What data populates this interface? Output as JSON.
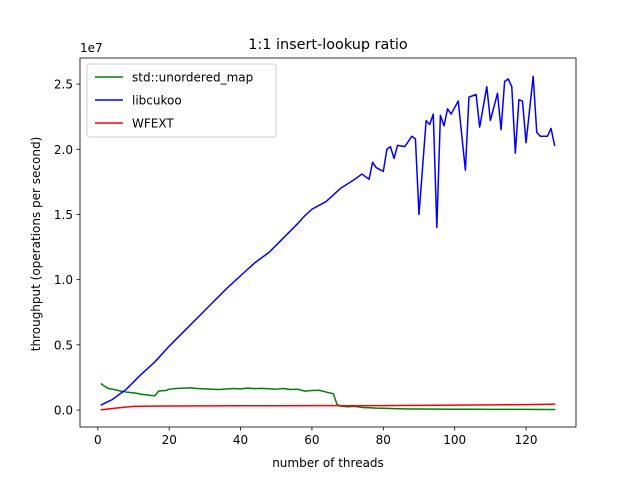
{
  "chart_data": {
    "type": "line",
    "title": "1:1 insert-lookup ratio",
    "xlabel": "number of threads",
    "ylabel": "throughput (operations per second)",
    "y_multiplier_label": "1e7",
    "xlim": [
      -5,
      134
    ],
    "ylim": [
      -1300000,
      27000000
    ],
    "xticks": [
      0,
      20,
      40,
      60,
      80,
      100,
      120
    ],
    "yticks": [
      0,
      5000000,
      10000000,
      15000000,
      20000000,
      25000000
    ],
    "ytick_labels": [
      "0.0",
      "0.5",
      "1.0",
      "1.5",
      "2.0",
      "2.5"
    ],
    "grid": false,
    "legend_position": "top-left",
    "series": [
      {
        "name": "std::unordered_map",
        "color": "#008000",
        "points": [
          [
            1,
            2000000
          ],
          [
            2,
            1800000
          ],
          [
            3,
            1650000
          ],
          [
            4,
            1600000
          ],
          [
            5,
            1550000
          ],
          [
            6,
            1480000
          ],
          [
            7,
            1420000
          ],
          [
            8,
            1380000
          ],
          [
            9,
            1350000
          ],
          [
            10,
            1320000
          ],
          [
            11,
            1280000
          ],
          [
            12,
            1220000
          ],
          [
            13,
            1180000
          ],
          [
            14,
            1150000
          ],
          [
            15,
            1120000
          ],
          [
            16,
            1100000
          ],
          [
            17,
            1450000
          ],
          [
            18,
            1480000
          ],
          [
            19,
            1500000
          ],
          [
            20,
            1600000
          ],
          [
            22,
            1650000
          ],
          [
            24,
            1680000
          ],
          [
            26,
            1700000
          ],
          [
            28,
            1650000
          ],
          [
            30,
            1620000
          ],
          [
            32,
            1600000
          ],
          [
            34,
            1580000
          ],
          [
            36,
            1610000
          ],
          [
            38,
            1650000
          ],
          [
            40,
            1620000
          ],
          [
            42,
            1680000
          ],
          [
            44,
            1640000
          ],
          [
            46,
            1660000
          ],
          [
            48,
            1630000
          ],
          [
            50,
            1600000
          ],
          [
            52,
            1650000
          ],
          [
            54,
            1580000
          ],
          [
            56,
            1600000
          ],
          [
            58,
            1450000
          ],
          [
            60,
            1500000
          ],
          [
            62,
            1520000
          ],
          [
            64,
            1380000
          ],
          [
            66,
            1250000
          ],
          [
            67,
            450000
          ],
          [
            68,
            300000
          ],
          [
            70,
            250000
          ],
          [
            72,
            280000
          ],
          [
            74,
            200000
          ],
          [
            76,
            180000
          ],
          [
            78,
            150000
          ],
          [
            80,
            140000
          ],
          [
            82,
            120000
          ],
          [
            84,
            100000
          ],
          [
            86,
            90000
          ],
          [
            88,
            80000
          ],
          [
            90,
            80000
          ],
          [
            95,
            70000
          ],
          [
            100,
            60000
          ],
          [
            105,
            60000
          ],
          [
            110,
            55000
          ],
          [
            115,
            50000
          ],
          [
            120,
            50000
          ],
          [
            125,
            45000
          ],
          [
            128,
            40000
          ]
        ]
      },
      {
        "name": "libcukoo",
        "color": "#0000ff",
        "points": [
          [
            1,
            400000
          ],
          [
            4,
            800000
          ],
          [
            8,
            1600000
          ],
          [
            12,
            2700000
          ],
          [
            16,
            3700000
          ],
          [
            20,
            4900000
          ],
          [
            24,
            6000000
          ],
          [
            28,
            7100000
          ],
          [
            32,
            8200000
          ],
          [
            36,
            9300000
          ],
          [
            40,
            10300000
          ],
          [
            44,
            11300000
          ],
          [
            48,
            12100000
          ],
          [
            52,
            13200000
          ],
          [
            56,
            14300000
          ],
          [
            58,
            14900000
          ],
          [
            60,
            15400000
          ],
          [
            64,
            16000000
          ],
          [
            68,
            17000000
          ],
          [
            72,
            17700000
          ],
          [
            74,
            18100000
          ],
          [
            76,
            17700000
          ],
          [
            77,
            19000000
          ],
          [
            78,
            18600000
          ],
          [
            80,
            18300000
          ],
          [
            81,
            20000000
          ],
          [
            82,
            20200000
          ],
          [
            83,
            19300000
          ],
          [
            84,
            20300000
          ],
          [
            86,
            20200000
          ],
          [
            88,
            21000000
          ],
          [
            89,
            20800000
          ],
          [
            90,
            15000000
          ],
          [
            92,
            22200000
          ],
          [
            93,
            21900000
          ],
          [
            94,
            22700000
          ],
          [
            95,
            14000000
          ],
          [
            96,
            22600000
          ],
          [
            97,
            21800000
          ],
          [
            98,
            23100000
          ],
          [
            99,
            22700000
          ],
          [
            101,
            23700000
          ],
          [
            103,
            18400000
          ],
          [
            104,
            24000000
          ],
          [
            106,
            24200000
          ],
          [
            107,
            21700000
          ],
          [
            109,
            24800000
          ],
          [
            110,
            22200000
          ],
          [
            112,
            24300000
          ],
          [
            113,
            21500000
          ],
          [
            114,
            25200000
          ],
          [
            115,
            25400000
          ],
          [
            116,
            24800000
          ],
          [
            117,
            19700000
          ],
          [
            118,
            23800000
          ],
          [
            119,
            23700000
          ],
          [
            120,
            20500000
          ],
          [
            122,
            25600000
          ],
          [
            123,
            21300000
          ],
          [
            124,
            21000000
          ],
          [
            126,
            21000000
          ],
          [
            127,
            21600000
          ],
          [
            128,
            20300000
          ]
        ]
      },
      {
        "name": "WFEXT",
        "color": "#ff0000",
        "points": [
          [
            1,
            20000
          ],
          [
            5,
            150000
          ],
          [
            10,
            280000
          ],
          [
            15,
            300000
          ],
          [
            20,
            310000
          ],
          [
            30,
            320000
          ],
          [
            40,
            330000
          ],
          [
            50,
            330000
          ],
          [
            60,
            340000
          ],
          [
            67,
            340000
          ],
          [
            70,
            330000
          ],
          [
            80,
            340000
          ],
          [
            90,
            360000
          ],
          [
            100,
            380000
          ],
          [
            110,
            400000
          ],
          [
            120,
            420000
          ],
          [
            128,
            450000
          ]
        ]
      }
    ]
  }
}
